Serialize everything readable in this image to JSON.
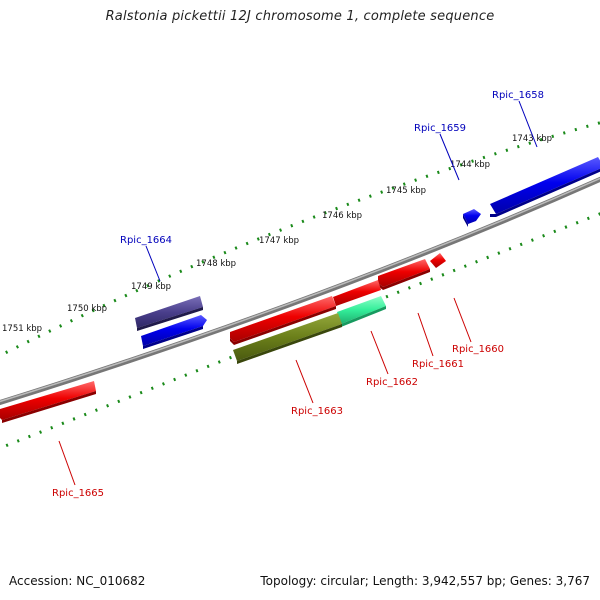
{
  "title": "Ralstonia pickettii 12J chromosome 1, complete sequence",
  "footer": {
    "accession": "Accession: NC_010682",
    "topology": "Topology: circular; Length: 3,942,557 bp; Genes: 3,767"
  },
  "colors": {
    "forward_gene": "#0000ee",
    "forward_gene_selected": "#4a3f8c",
    "reverse_gene": "#ee0000",
    "reverse_gene_selected_a": "#6b7f1a",
    "reverse_gene_selected_b": "#33ee99",
    "backbone": "#888888",
    "ticks": "#1a8a1a"
  },
  "scale_labels": [
    "1743 kbp",
    "1744 kbp",
    "1745 kbp",
    "1746 kbp",
    "1747 kbp",
    "1748 kbp",
    "1749 kbp",
    "1750 kbp",
    "1751 kbp"
  ],
  "forward_genes": [
    {
      "id": "Rpic_1658",
      "label": "Rpic_1658"
    },
    {
      "id": "Rpic_1659",
      "label": "Rpic_1659"
    },
    {
      "id": "Rpic_1664",
      "label": "Rpic_1664"
    }
  ],
  "reverse_genes": [
    {
      "id": "Rpic_1660",
      "label": "Rpic_1660"
    },
    {
      "id": "Rpic_1661",
      "label": "Rpic_1661"
    },
    {
      "id": "Rpic_1662",
      "label": "Rpic_1662"
    },
    {
      "id": "Rpic_1663",
      "label": "Rpic_1663"
    },
    {
      "id": "Rpic_1665",
      "label": "Rpic_1665"
    }
  ]
}
